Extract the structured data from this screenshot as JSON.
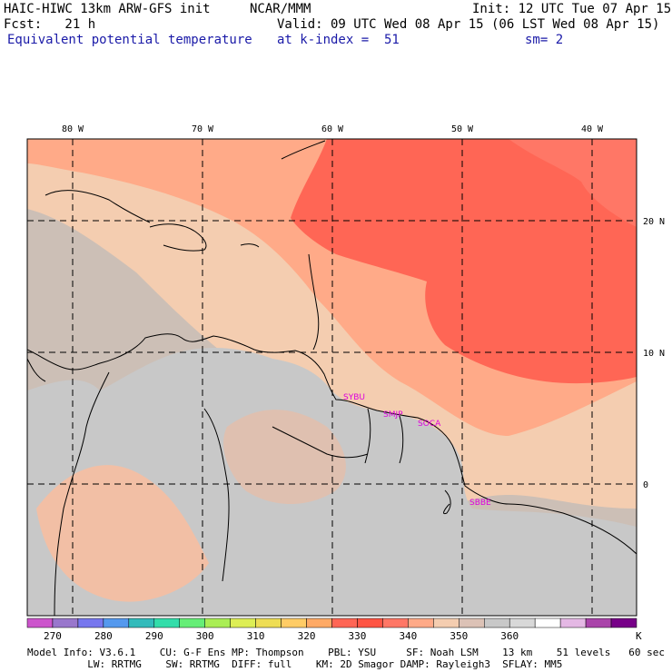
{
  "header": {
    "title": "HAIC-HIWC 13km ARW-GFS init",
    "org": "NCAR/MMM",
    "init": "Init: 12 UTC Tue 07 Apr 15",
    "fcst": "Fcst:   21 h",
    "valid": "Valid: 09 UTC Wed 08 Apr 15 (06 LST Wed 08 Apr 15)",
    "field": "Equivalent potential temperature",
    "level": "at k-index =  51",
    "smooth": "sm= 2"
  },
  "map": {
    "lon_labels": [
      "80 W",
      "70 W",
      "60 W",
      "50 W",
      "40 W"
    ],
    "lat_labels": [
      "20 N",
      "10 N",
      "0"
    ],
    "station_labels": [
      "SYBU",
      "SMJP",
      "SOCA",
      "SBBE"
    ],
    "station_color": "#dd00dd"
  },
  "colorbar": {
    "colors": [
      "#cc55cc",
      "#9977cc",
      "#7777ee",
      "#5599ee",
      "#33bbbb",
      "#33ddaa",
      "#66ee77",
      "#aaee55",
      "#ddee55",
      "#eedd55",
      "#ffcc66",
      "#ffaa66",
      "#ff6655",
      "#ff5544",
      "#ff7766",
      "#ffaa88",
      "#f4cdb0",
      "#dcc2b6",
      "#c8c8c8",
      "#d8d8d8",
      "#ffffff",
      "#e4b8e4",
      "#aa44aa",
      "#770088"
    ],
    "labels": [
      "270",
      "280",
      "290",
      "300",
      "310",
      "320",
      "330",
      "340",
      "350",
      "360"
    ],
    "unit": "K"
  },
  "footer": {
    "line1": "Model Info: V3.6.1    CU: G-F Ens MP: Thompson    PBL: YSU     SF: Noah LSM    13 km    51 levels   60 sec",
    "line2": "          LW: RRTMG    SW: RRTMG  DIFF: full    KM: 2D Smagor DAMP: Rayleigh3  SFLAY: MM5"
  }
}
